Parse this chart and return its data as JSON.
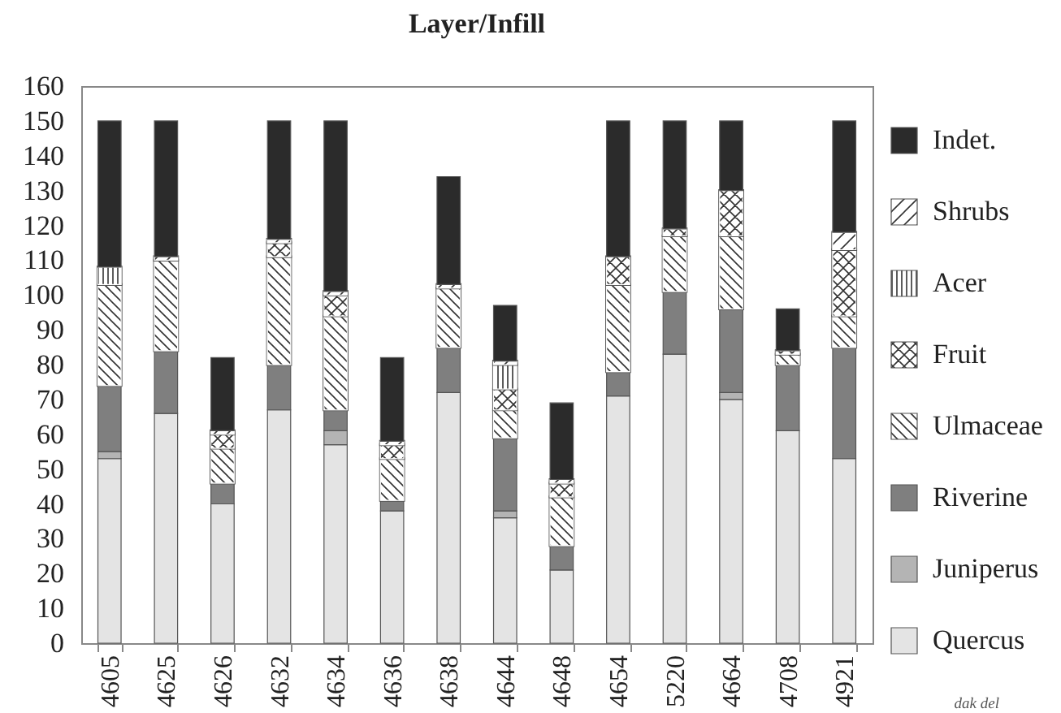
{
  "chart_data": {
    "type": "bar",
    "title": "Layer/Infill",
    "stacked": true,
    "legend": "right",
    "categories": [
      "4605",
      "4625",
      "4626",
      "4632",
      "4634",
      "4636",
      "4638",
      "4644",
      "4648",
      "4654",
      "5220",
      "4664",
      "4708",
      "4921"
    ],
    "series": [
      {
        "name": "Quercus",
        "color": "#e4e4e4",
        "values": [
          53,
          66,
          40,
          67,
          57,
          38,
          72,
          36,
          21,
          71,
          83,
          70,
          61,
          53
        ]
      },
      {
        "name": "Juniperus",
        "color": "#b4b4b4",
        "values": [
          2,
          null,
          null,
          null,
          4,
          null,
          null,
          2,
          null,
          null,
          null,
          2,
          null,
          null
        ]
      },
      {
        "name": "Riverine",
        "color": "#7f7f7f",
        "values": [
          19,
          18,
          6,
          13,
          6,
          3,
          13,
          21,
          7,
          7,
          18,
          24,
          19,
          32
        ]
      },
      {
        "name": "Ulmaceae",
        "color": "#ffffff",
        "values": [
          29,
          26,
          10,
          31,
          27,
          12,
          17,
          8,
          14,
          25,
          16,
          21,
          3,
          9
        ]
      },
      {
        "name": "Fruit",
        "color": "#ffffff",
        "values": [
          null,
          null,
          4,
          4,
          6,
          4,
          null,
          6,
          4,
          8,
          2,
          13,
          1,
          19
        ]
      },
      {
        "name": "Acer",
        "color": "#ffffff",
        "values": [
          5,
          null,
          null,
          null,
          null,
          null,
          null,
          7,
          null,
          null,
          null,
          null,
          null,
          null
        ]
      },
      {
        "name": "Shrubs",
        "color": "#ffffff",
        "values": [
          null,
          1,
          1,
          1,
          1,
          1,
          1,
          1,
          1,
          null,
          null,
          null,
          null,
          5
        ]
      },
      {
        "name": "Indet.",
        "color": "#2b2b2b",
        "values": [
          42,
          39,
          21,
          34,
          49,
          24,
          31,
          16,
          22,
          39,
          31,
          20,
          12,
          32
        ]
      }
    ],
    "ylim": [
      0,
      160
    ],
    "yticks": [
      0,
      10,
      20,
      30,
      40,
      50,
      60,
      70,
      80,
      90,
      100,
      110,
      120,
      130,
      140,
      150,
      160
    ],
    "annotations": [
      "dak del"
    ]
  }
}
